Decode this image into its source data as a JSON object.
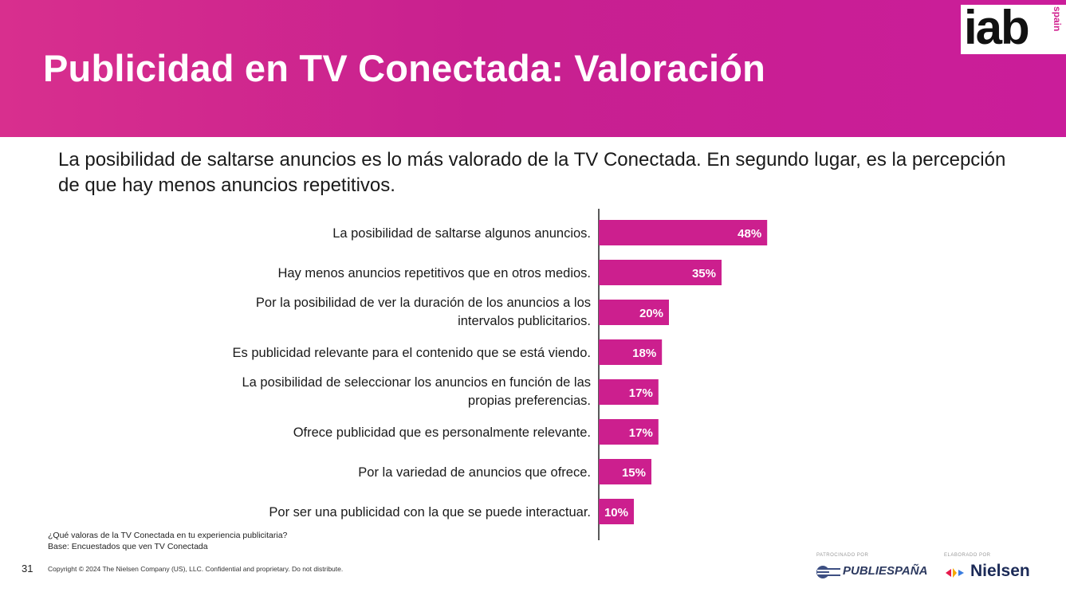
{
  "header": {
    "title": "Publicidad en TV Conectada: Valoración",
    "logo_text": "iab",
    "logo_sub": "spain"
  },
  "subtitle": "La posibilidad de saltarse anuncios es lo más valorado de la TV Conectada. En segundo lugar, es la percepción de que hay menos anuncios repetitivos.",
  "chart_data": {
    "type": "bar",
    "orientation": "horizontal",
    "categories": [
      "La posibilidad de saltarse algunos anuncios.",
      "Hay menos anuncios repetitivos que en otros medios.",
      "Por la posibilidad de ver la duración de los anuncios a los intervalos publicitarios.",
      "Es publicidad relevante para el contenido que se está viendo.",
      "La posibilidad de seleccionar los anuncios en función de las propias preferencias.",
      "Ofrece publicidad que es personalmente relevante.",
      "Por la variedad de anuncios que ofrece.",
      "Por ser una publicidad con la que se puede interactuar."
    ],
    "values": [
      48,
      35,
      20,
      18,
      17,
      17,
      15,
      10
    ],
    "value_labels": [
      "48%",
      "35%",
      "20%",
      "18%",
      "17%",
      "17%",
      "15%",
      "10%"
    ],
    "unit": "%",
    "bar_color": "#cc1f8e",
    "xlim": [
      0,
      100
    ],
    "grid": false,
    "legend": "none"
  },
  "footnote": {
    "question": "¿Qué valoras de la TV Conectada en tu experiencia publicitaria?",
    "base": "Base: Encuestados que ven TV Conectada"
  },
  "footer": {
    "page_number": "31",
    "copyright": "Copyright © 2024 The Nielsen Company (US), LLC. Confidential and proprietary. Do not distribute.",
    "sponsor_label": "PATROCINADO POR",
    "sponsor_name": "PUBLIESPAÑA",
    "producer_label": "ELABORADO POR",
    "producer_name": "Nielsen"
  },
  "colors": {
    "header_bg": "#cc1f8e",
    "bar": "#cc1f8e",
    "bar_label": "#ffffff"
  },
  "icons": [
    "publiespana-logo-icon",
    "nielsen-logo-icon"
  ]
}
